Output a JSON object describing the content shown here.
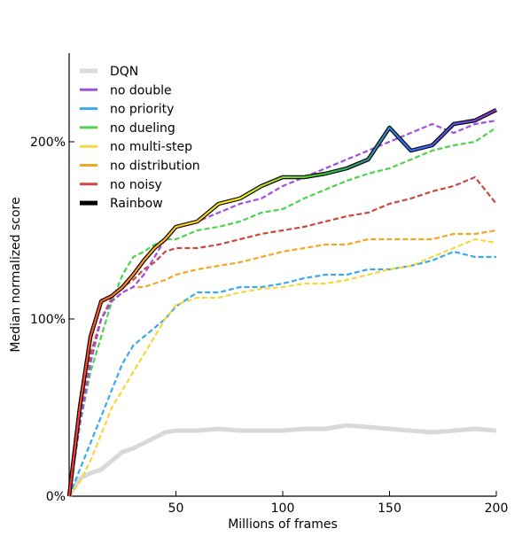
{
  "chart_data": {
    "type": "line",
    "title": "",
    "xlabel": "Millions of frames",
    "ylabel": "Median normalized score",
    "xlim": [
      0,
      200
    ],
    "ylim": [
      0,
      250
    ],
    "x_ticks": [
      {
        "value": 50,
        "label": "50"
      },
      {
        "value": 100,
        "label": "100"
      },
      {
        "value": 150,
        "label": "150"
      },
      {
        "value": 200,
        "label": "200"
      }
    ],
    "y_ticks": [
      {
        "value": 0,
        "label": "0%"
      },
      {
        "value": 100,
        "label": "100%"
      },
      {
        "value": 200,
        "label": "200%"
      }
    ],
    "grid": false,
    "legend_position": "top-left",
    "x": [
      0,
      5,
      10,
      15,
      20,
      25,
      30,
      35,
      40,
      45,
      50,
      60,
      70,
      80,
      90,
      100,
      110,
      120,
      130,
      140,
      150,
      160,
      170,
      180,
      190,
      200
    ],
    "series": [
      {
        "name": "DQN",
        "color": "#d9d9d9",
        "style": "solid",
        "values": [
          0,
          10,
          13,
          15,
          20,
          25,
          27,
          30,
          33,
          36,
          37,
          37,
          38,
          37,
          37,
          37,
          38,
          38,
          40,
          39,
          38,
          37,
          36,
          37,
          38,
          37
        ]
      },
      {
        "name": "no double",
        "color": "#a050e0",
        "style": "dashed",
        "values": [
          0,
          40,
          75,
          100,
          110,
          115,
          118,
          125,
          135,
          145,
          152,
          155,
          160,
          165,
          168,
          175,
          180,
          185,
          190,
          195,
          200,
          205,
          210,
          205,
          210,
          212
        ]
      },
      {
        "name": "no priority",
        "color": "#3da8f0",
        "style": "dashed",
        "values": [
          0,
          15,
          30,
          45,
          60,
          75,
          85,
          90,
          95,
          100,
          107,
          115,
          115,
          118,
          118,
          120,
          123,
          125,
          125,
          128,
          128,
          130,
          133,
          138,
          135,
          135
        ]
      },
      {
        "name": "no dueling",
        "color": "#4cd44c",
        "style": "dashed",
        "values": [
          0,
          40,
          70,
          90,
          110,
          125,
          135,
          138,
          142,
          145,
          145,
          150,
          152,
          155,
          160,
          162,
          168,
          173,
          178,
          182,
          185,
          190,
          195,
          198,
          200,
          208
        ]
      },
      {
        "name": "no multi-step",
        "color": "#f5d93b",
        "style": "dashed",
        "values": [
          0,
          8,
          20,
          35,
          50,
          60,
          70,
          80,
          90,
          100,
          108,
          112,
          112,
          115,
          117,
          118,
          120,
          120,
          122,
          125,
          128,
          130,
          135,
          140,
          145,
          143
        ]
      },
      {
        "name": "no distribution",
        "color": "#f5a623",
        "style": "dashed",
        "values": [
          0,
          45,
          80,
          100,
          110,
          115,
          118,
          118,
          120,
          122,
          125,
          128,
          130,
          132,
          135,
          138,
          140,
          142,
          142,
          145,
          145,
          145,
          145,
          148,
          148,
          150
        ]
      },
      {
        "name": "no noisy",
        "color": "#c94a42",
        "style": "dashed",
        "values": [
          0,
          45,
          80,
          100,
          112,
          118,
          122,
          128,
          132,
          138,
          140,
          140,
          142,
          145,
          148,
          150,
          152,
          155,
          158,
          160,
          165,
          168,
          172,
          175,
          180,
          165
        ]
      },
      {
        "name": "Rainbow",
        "color": "rainbow",
        "style": "solid",
        "values": [
          0,
          50,
          90,
          110,
          113,
          118,
          125,
          133,
          140,
          145,
          152,
          155,
          165,
          168,
          175,
          180,
          180,
          182,
          185,
          190,
          208,
          195,
          198,
          210,
          212,
          218
        ]
      }
    ]
  }
}
